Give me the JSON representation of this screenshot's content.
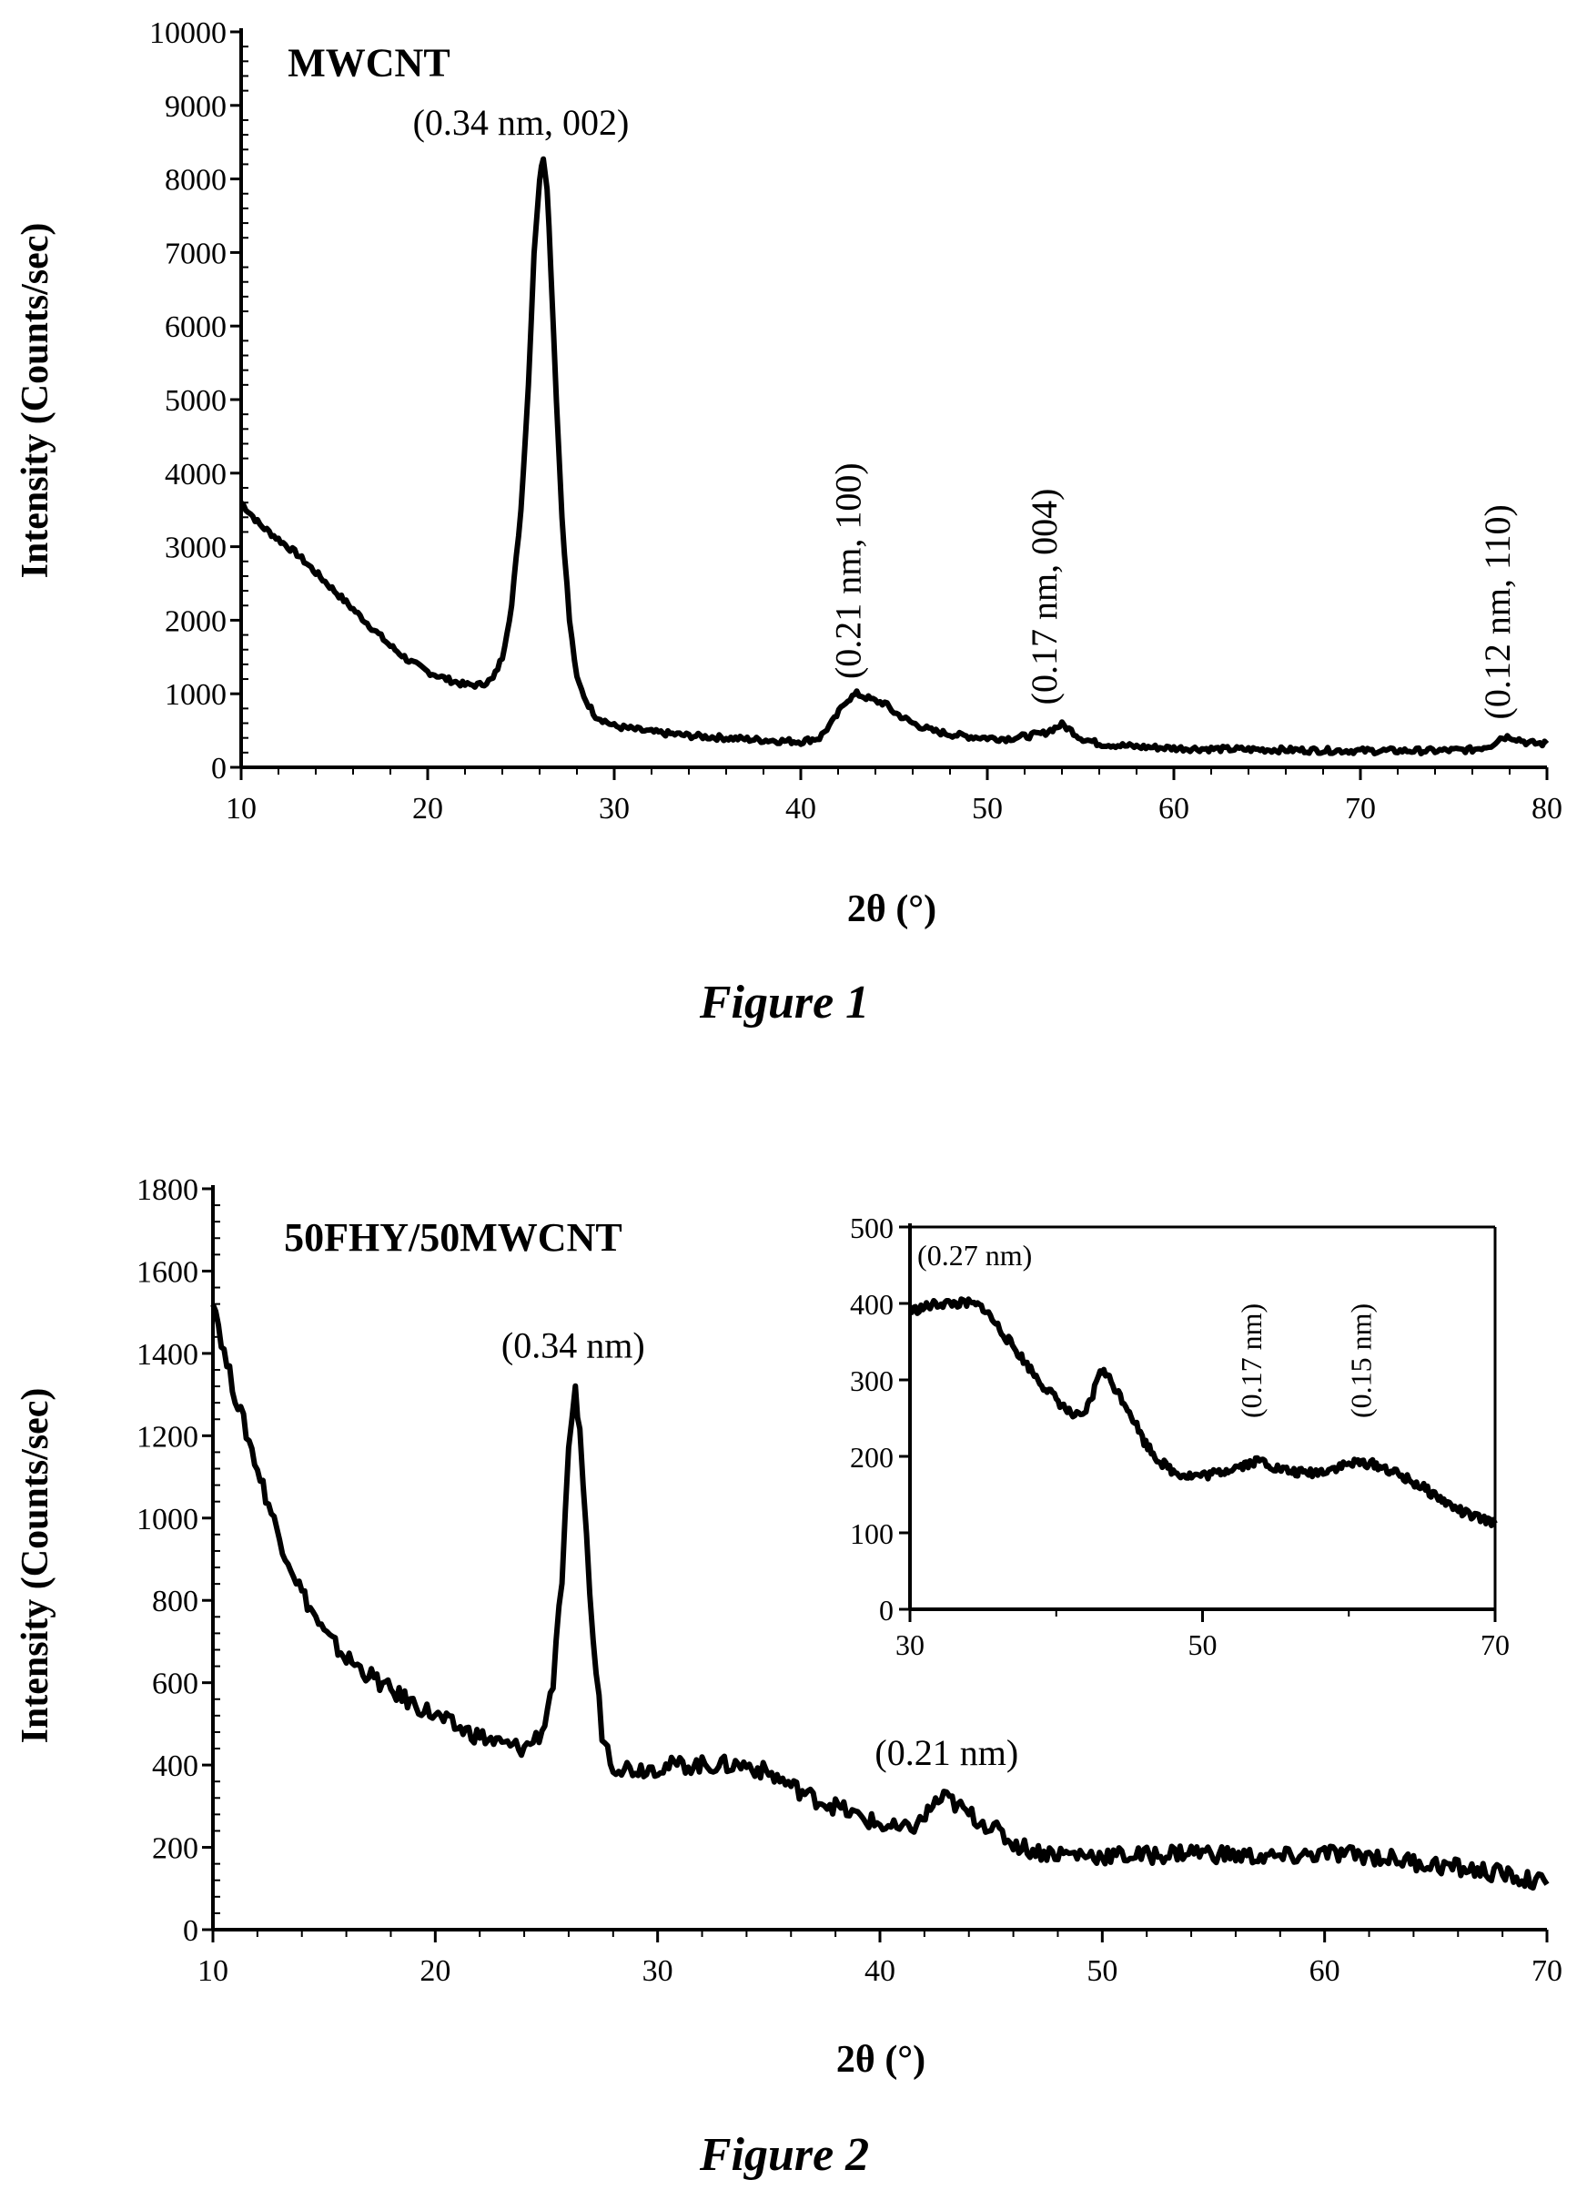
{
  "chart_data": [
    {
      "type": "line",
      "caption": "Figure 1",
      "xlabel": "2θ (°)",
      "ylabel": "Intensity (Counts/sec)",
      "xlim": [
        10,
        80
      ],
      "ylim": [
        0,
        10000
      ],
      "xticks": [
        "10",
        "20",
        "30",
        "40",
        "50",
        "60",
        "70",
        "80"
      ],
      "yticks": [
        "0",
        "1000",
        "2000",
        "3000",
        "4000",
        "5000",
        "6000",
        "7000",
        "8000",
        "9000",
        "10000"
      ],
      "grid": false,
      "annotations": [
        {
          "text": "MWCNT",
          "x": 12.5,
          "y": 9400
        },
        {
          "text": "(0.34 nm, 002)",
          "x": 25,
          "y": 8600
        },
        {
          "text": "(0.21 nm, 100)",
          "x": 43.2,
          "y": 1200
        },
        {
          "text": "(0.17 nm, 004)",
          "x": 53.7,
          "y": 850
        },
        {
          "text": "(0.12 nm, 110)",
          "x": 78.0,
          "y": 650
        }
      ],
      "series": [
        {
          "x": [
            10,
            11,
            12,
            13,
            14,
            15,
            16,
            17,
            18,
            19,
            20,
            21,
            22,
            22.8,
            23.5,
            24.0,
            24.5,
            25.0,
            25.4,
            25.7,
            26.0,
            26.2,
            26.4,
            26.6,
            26.9,
            27.2,
            27.6,
            28.0,
            28.5,
            29.0,
            30,
            32,
            34,
            36,
            38,
            40,
            41,
            41.8,
            42.4,
            43.0,
            43.5,
            44.0,
            44.5,
            45.0,
            46,
            47,
            48,
            49,
            50,
            51,
            52,
            53,
            53.5,
            54.0,
            54.5,
            55,
            56,
            58,
            60,
            62,
            65,
            68,
            70,
            72,
            74,
            76,
            77,
            77.5,
            78.0,
            78.5,
            79,
            80
          ],
          "y": [
            3600,
            3300,
            3100,
            2900,
            2650,
            2400,
            2150,
            1900,
            1650,
            1450,
            1300,
            1200,
            1120,
            1120,
            1200,
            1500,
            2200,
            3500,
            5200,
            7000,
            8000,
            8300,
            7900,
            6800,
            5000,
            3400,
            2000,
            1200,
            900,
            700,
            560,
            480,
            430,
            400,
            370,
            350,
            400,
            650,
            900,
            1000,
            950,
            900,
            870,
            750,
            600,
            500,
            450,
            420,
            400,
            390,
            420,
            460,
            520,
            580,
            500,
            400,
            320,
            280,
            260,
            250,
            240,
            230,
            225,
            225,
            225,
            240,
            300,
            400,
            420,
            380,
            330,
            320
          ]
        }
      ]
    },
    {
      "type": "line",
      "caption": "Figure 2",
      "xlabel": "2θ (°)",
      "ylabel": "Intensity (Counts/sec)",
      "xlim": [
        10,
        70
      ],
      "ylim": [
        0,
        1800
      ],
      "xticks": [
        "10",
        "20",
        "30",
        "40",
        "50",
        "60",
        "70"
      ],
      "yticks": [
        "0",
        "200",
        "400",
        "600",
        "800",
        "1000",
        "1200",
        "1400",
        "1600",
        "1800"
      ],
      "grid": false,
      "annotations": [
        {
          "text": "50FHY/50MWCNT",
          "x": 13.2,
          "y": 1650
        },
        {
          "text": "(0.34 nm)",
          "x": 26.2,
          "y": 1390
        },
        {
          "text": "(0.21 nm)",
          "x": 43.0,
          "y": 400
        }
      ],
      "series": [
        {
          "x": [
            10,
            10.5,
            11,
            12,
            13,
            14,
            15,
            16,
            17,
            18,
            19,
            20,
            21,
            22,
            23,
            24,
            24.8,
            25.3,
            25.7,
            26.0,
            26.3,
            26.5,
            26.8,
            27.1,
            27.5,
            28,
            29,
            30,
            31,
            32,
            33,
            34,
            35,
            36,
            37,
            38,
            39,
            40,
            41,
            41.8,
            42.5,
            43.0,
            43.5,
            44,
            45,
            46,
            47,
            48,
            50,
            52,
            54,
            56,
            58,
            60,
            62,
            64,
            66,
            68,
            70
          ],
          "y": [
            1540,
            1400,
            1300,
            1120,
            950,
            820,
            720,
            660,
            620,
            580,
            550,
            520,
            490,
            470,
            450,
            440,
            480,
            600,
            850,
            1150,
            1300,
            1220,
            950,
            700,
            480,
            400,
            390,
            395,
            400,
            400,
            400,
            400,
            380,
            350,
            320,
            300,
            275,
            255,
            240,
            260,
            310,
            320,
            300,
            280,
            250,
            210,
            190,
            185,
            180,
            180,
            190,
            180,
            175,
            185,
            180,
            165,
            150,
            135,
            110
          ]
        }
      ],
      "inset": {
        "type": "line",
        "xlim": [
          30,
          70
        ],
        "ylim": [
          0,
          500
        ],
        "xticks": [
          "30",
          "50",
          "70"
        ],
        "yticks": [
          "0",
          "100",
          "200",
          "300",
          "400",
          "500"
        ],
        "annotations": [
          {
            "text": "(0.27 nm)",
            "x": 30.5,
            "y": 450
          },
          {
            "text": "(0.17 nm)",
            "x": 54.0,
            "y": 250
          },
          {
            "text": "(0.15 nm)",
            "x": 61.5,
            "y": 250
          }
        ],
        "series": [
          {
            "x": [
              30,
              31,
              32,
              33,
              34,
              35,
              36,
              37,
              38,
              39,
              40,
              41,
              41.8,
              42.5,
              43.0,
              43.5,
              44,
              45,
              46,
              47,
              48,
              49,
              50,
              51,
              52,
              53,
              54,
              55,
              56,
              57,
              58,
              59,
              60,
              61,
              62,
              63,
              64,
              65,
              66,
              67,
              68,
              69,
              70
            ],
            "y": [
              390,
              395,
              400,
              400,
              400,
              395,
              370,
              345,
              320,
              295,
              275,
              255,
              250,
              280,
              315,
              305,
              290,
              260,
              220,
              195,
              180,
              175,
              175,
              178,
              185,
              190,
              195,
              185,
              180,
              178,
              180,
              185,
              190,
              192,
              188,
              180,
              170,
              160,
              148,
              135,
              125,
              118,
              112
            ]
          }
        ]
      }
    }
  ]
}
